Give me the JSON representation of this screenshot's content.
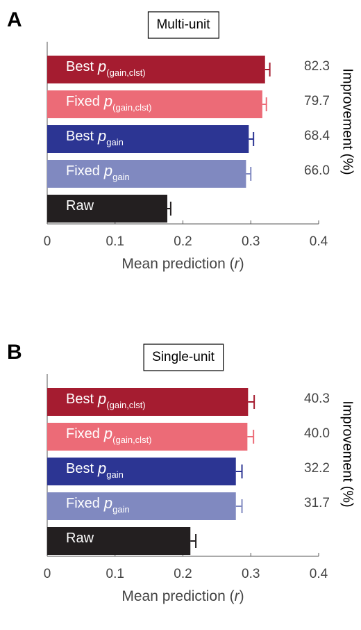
{
  "chart_data": [
    {
      "type": "hbar",
      "panel": "A",
      "title": "Multi-unit",
      "categories": [
        {
          "text": "Best",
          "var": "p",
          "sub": "(gain,clst)"
        },
        {
          "text": "Fixed",
          "var": "p",
          "sub": "(gain,clst)"
        },
        {
          "text": "Best",
          "var": "p",
          "sub": "gain"
        },
        {
          "text": "Fixed",
          "var": "p",
          "sub": "gain"
        },
        {
          "text": "Raw"
        }
      ],
      "values": [
        0.321,
        0.317,
        0.297,
        0.293,
        0.177
      ],
      "errors": [
        0.007,
        0.006,
        0.007,
        0.007,
        0.005
      ],
      "colors": [
        "#a51c30",
        "#ec6b77",
        "#2c3593",
        "#8089c0",
        "#231f20"
      ],
      "improvement": [
        82.3,
        79.7,
        68.4,
        66.0,
        null
      ],
      "improvement_labels": [
        "82.3",
        "79.7",
        "68.4",
        "66.0",
        null
      ],
      "y2label": "Improvement (%)",
      "xlabel": [
        "Mean prediction (",
        "r",
        ")"
      ],
      "xlim": [
        0,
        0.4
      ],
      "xticks": [
        0,
        0.1,
        0.2,
        0.3,
        0.4
      ]
    },
    {
      "type": "hbar",
      "panel": "B",
      "title": "Single-unit",
      "categories": [
        {
          "text": "Best",
          "var": "p",
          "sub": "(gain,clst)"
        },
        {
          "text": "Fixed",
          "var": "p",
          "sub": "(gain,clst)"
        },
        {
          "text": "Best",
          "var": "p",
          "sub": "gain"
        },
        {
          "text": "Fixed",
          "var": "p",
          "sub": "gain"
        },
        {
          "text": "Raw"
        }
      ],
      "values": [
        0.296,
        0.295,
        0.278,
        0.278,
        0.211
      ],
      "errors": [
        0.009,
        0.009,
        0.009,
        0.009,
        0.008
      ],
      "colors": [
        "#a51c30",
        "#ec6b77",
        "#2c3593",
        "#8089c0",
        "#231f20"
      ],
      "improvement": [
        40.3,
        40.0,
        32.2,
        31.7,
        null
      ],
      "improvement_labels": [
        "40.3",
        "40.0",
        "32.2",
        "31.7",
        null
      ],
      "y2label": "Improvement (%)",
      "xlabel": [
        "Mean prediction (",
        "r",
        ")"
      ],
      "xlim": [
        0,
        0.4
      ],
      "xticks": [
        0,
        0.1,
        0.2,
        0.3,
        0.4
      ]
    }
  ]
}
